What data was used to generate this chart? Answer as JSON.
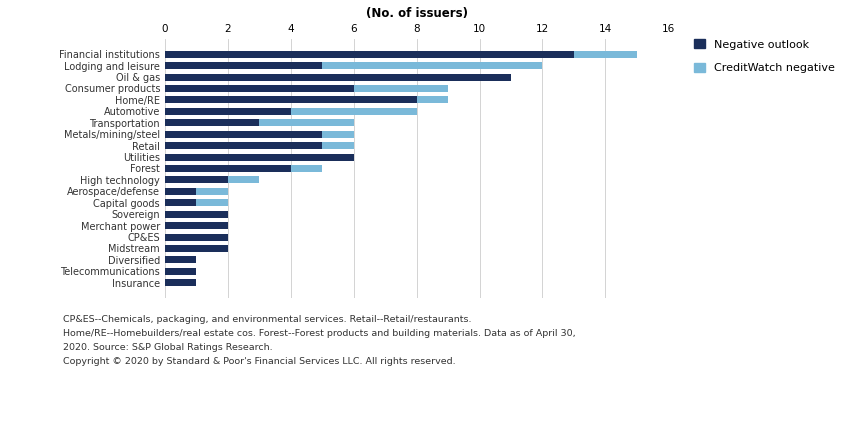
{
  "xlabel": "(No. of issuers)",
  "categories": [
    "Financial institutions",
    "Lodging and leisure",
    "Oil & gas",
    "Consumer products",
    "Home/RE",
    "Automotive",
    "Transportation",
    "Metals/mining/steel",
    "Retail",
    "Utilities",
    "Forest",
    "High technology",
    "Aerospace/defense",
    "Capital goods",
    "Sovereign",
    "Merchant power",
    "CP&ES",
    "Midstream",
    "Diversified",
    "Telecommunications",
    "Insurance"
  ],
  "negative_outlook": [
    13,
    5,
    11,
    6,
    8,
    4,
    3,
    5,
    5,
    6,
    4,
    2,
    1,
    1,
    2,
    2,
    2,
    2,
    1,
    1,
    1
  ],
  "creditwatch_negative": [
    2,
    7,
    0,
    3,
    1,
    4,
    3,
    1,
    1,
    0,
    1,
    1,
    1,
    1,
    0,
    0,
    0,
    0,
    0,
    0,
    0
  ],
  "color_negative": "#1a2e5a",
  "color_creditwatch": "#7ab9d9",
  "xlim": [
    0,
    16
  ],
  "xticks": [
    0,
    2,
    4,
    6,
    8,
    10,
    12,
    14,
    16
  ],
  "footnote_lines": [
    "CP&ES--Chemicals, packaging, and environmental services. Retail--Retail/restaurants.",
    "Home/RE--Homebuilders/real estate cos. Forest--Forest products and building materials. Data as of April 30,",
    "2020. Source: S&P Global Ratings Research.",
    "Copyright © 2020 by Standard & Poor's Financial Services LLC. All rights reserved."
  ],
  "legend_labels": [
    "Negative outlook",
    "CreditWatch negative"
  ],
  "background_color": "#ffffff"
}
